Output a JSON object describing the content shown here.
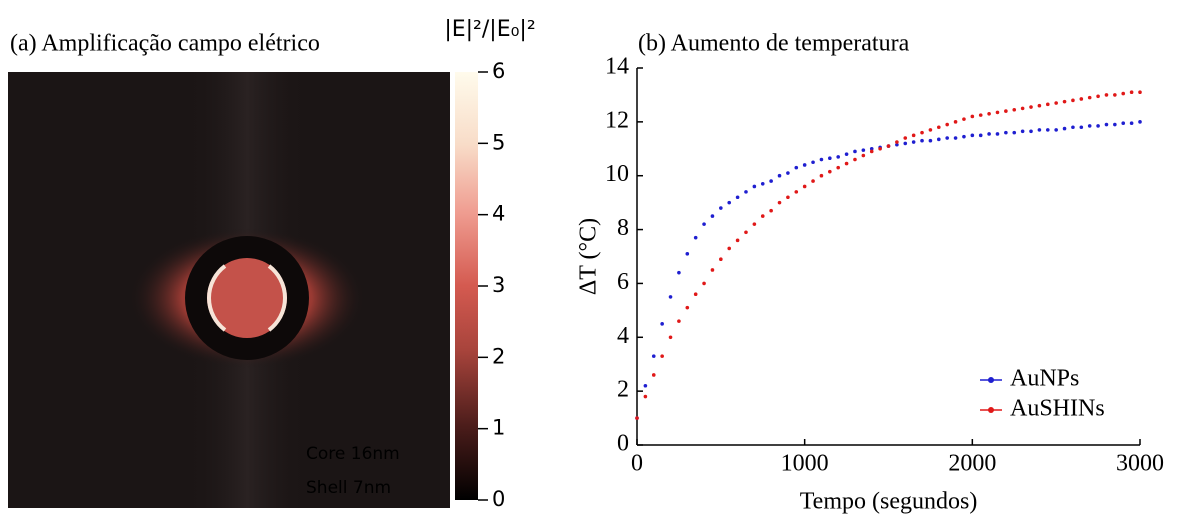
{
  "chart_data": [
    {
      "type": "heatmap",
      "title": "(a) Amplificação campo elétrico",
      "colorbar_label": "|E|²/|E₀|²",
      "colorlim": [
        0,
        6
      ],
      "colorticks": [
        0,
        1,
        2,
        3,
        4,
        5,
        6
      ],
      "annotations": [
        "Core 16nm",
        "Shell 7nm"
      ]
    },
    {
      "type": "scatter",
      "title": "(b) Aumento de temperatura",
      "x_label": "Tempo (segundos)",
      "y_label": "ΔT (°C)",
      "xlim": [
        0,
        3000
      ],
      "xticks": [
        0,
        1000,
        2000,
        3000
      ],
      "ylim": [
        0,
        14
      ],
      "yticks": [
        0,
        2,
        4,
        6,
        8,
        10,
        12,
        14
      ],
      "legend": "lower right",
      "x": [
        0,
        50,
        100,
        150,
        200,
        250,
        300,
        350,
        400,
        450,
        500,
        550,
        600,
        650,
        700,
        750,
        800,
        850,
        900,
        950,
        1000,
        1050,
        1100,
        1150,
        1200,
        1250,
        1300,
        1350,
        1400,
        1450,
        1500,
        1550,
        1600,
        1650,
        1700,
        1750,
        1800,
        1850,
        1900,
        1950,
        2000,
        2050,
        2100,
        2150,
        2200,
        2250,
        2300,
        2350,
        2400,
        2450,
        2500,
        2550,
        2600,
        2650,
        2700,
        2750,
        2800,
        2850,
        2900,
        2950,
        3000
      ],
      "series": [
        {
          "name": "AuNPs",
          "color": "#1f1fd0",
          "values": [
            1.0,
            2.2,
            3.3,
            4.5,
            5.5,
            6.4,
            7.1,
            7.7,
            8.2,
            8.5,
            8.8,
            9.0,
            9.2,
            9.4,
            9.6,
            9.7,
            9.8,
            10.0,
            10.1,
            10.3,
            10.4,
            10.5,
            10.6,
            10.65,
            10.7,
            10.8,
            10.9,
            10.95,
            11.0,
            11.05,
            11.1,
            11.15,
            11.2,
            11.25,
            11.3,
            11.3,
            11.35,
            11.4,
            11.4,
            11.45,
            11.5,
            11.5,
            11.55,
            11.55,
            11.6,
            11.6,
            11.65,
            11.65,
            11.7,
            11.7,
            11.7,
            11.75,
            11.8,
            11.8,
            11.85,
            11.85,
            11.9,
            11.9,
            11.95,
            11.95,
            12.0
          ]
        },
        {
          "name": "AuSHINs",
          "color": "#e01818",
          "values": [
            1.0,
            1.8,
            2.6,
            3.3,
            4.0,
            4.6,
            5.1,
            5.6,
            6.0,
            6.5,
            6.9,
            7.3,
            7.6,
            7.9,
            8.2,
            8.5,
            8.7,
            9.0,
            9.2,
            9.4,
            9.6,
            9.8,
            10.0,
            10.15,
            10.3,
            10.45,
            10.6,
            10.75,
            10.9,
            11.0,
            11.1,
            11.25,
            11.4,
            11.5,
            11.6,
            11.7,
            11.8,
            11.9,
            12.0,
            12.1,
            12.2,
            12.25,
            12.3,
            12.35,
            12.4,
            12.45,
            12.5,
            12.55,
            12.6,
            12.65,
            12.7,
            12.75,
            12.8,
            12.85,
            12.9,
            12.95,
            13.0,
            13.0,
            13.05,
            13.1,
            13.1
          ]
        }
      ]
    }
  ]
}
